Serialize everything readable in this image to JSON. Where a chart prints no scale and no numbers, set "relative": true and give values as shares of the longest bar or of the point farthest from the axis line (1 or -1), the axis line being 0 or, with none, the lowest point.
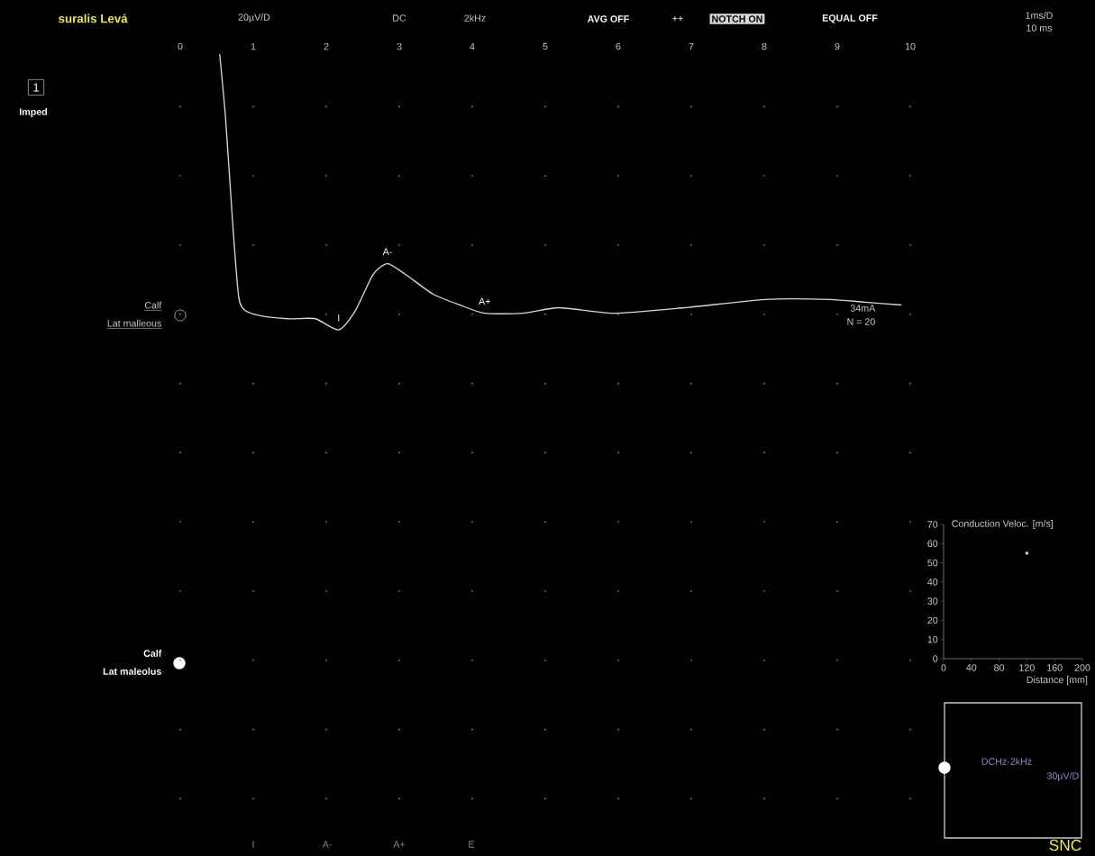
{
  "chart_data": [
    {
      "type": "line",
      "title": "suralis Levá",
      "relative": true,
      "grid": "x",
      "tick_labels": "x",
      "color": "#d8d8d8",
      "x": [
        0.54,
        0.62,
        0.72,
        0.8,
        0.89,
        1.11,
        1.48,
        1.85,
        2.17,
        2.4,
        2.64,
        2.84,
        3.09,
        3.46,
        3.83,
        4.17,
        4.69,
        5.19,
        5.93,
        6.91,
        8.02,
        8.89,
        9.38,
        9.88
      ],
      "values": [
        1,
        0.77,
        0.38,
        0.12,
        0.07,
        0.05,
        0.04,
        0.04,
        0,
        0.07,
        0.2,
        0.24,
        0.2,
        0.13,
        0.09,
        0.06,
        0.06,
        0.08,
        0.06,
        0.08,
        0.11,
        0.11,
        0.1,
        0.09
      ],
      "xlim": [
        0,
        10
      ],
      "xticks": [
        0,
        1,
        2,
        3,
        4,
        5,
        6,
        7,
        8,
        9,
        10
      ],
      "annotations": [
        {
          "text": "I",
          "x": 2.17,
          "y": 0
        },
        {
          "text": "A-",
          "x": 2.84,
          "y": 0.24
        },
        {
          "text": "A+",
          "x": 4.17,
          "y": 0.06
        },
        "20µV/D",
        "DC",
        "2kHz",
        "AVG OFF",
        "++",
        "NOTCH ON",
        "EQUAL OFF",
        "1ms/D",
        "10 ms",
        "1",
        "Imped",
        "Calf",
        "Lat malleous",
        "Calf",
        "Lat maleolus",
        "34mA",
        "N = 20",
        "I",
        "A-",
        "A+",
        "E",
        "DCHz-2kHz",
        "30µV/D",
        "SNC"
      ]
    },
    {
      "type": "scatter",
      "xlabel": "Distance [mm]",
      "ylabel": "Conduction Veloc. [m/s]",
      "color": "#e6e6a0",
      "x": [
        120
      ],
      "values": [
        55
      ],
      "xlim": [
        0,
        200
      ],
      "xticks": [
        0,
        40,
        80,
        120,
        160,
        200
      ],
      "ylim": [
        0,
        70
      ],
      "yticks": [
        0,
        10,
        20,
        30,
        40,
        50,
        60,
        70
      ]
    }
  ]
}
